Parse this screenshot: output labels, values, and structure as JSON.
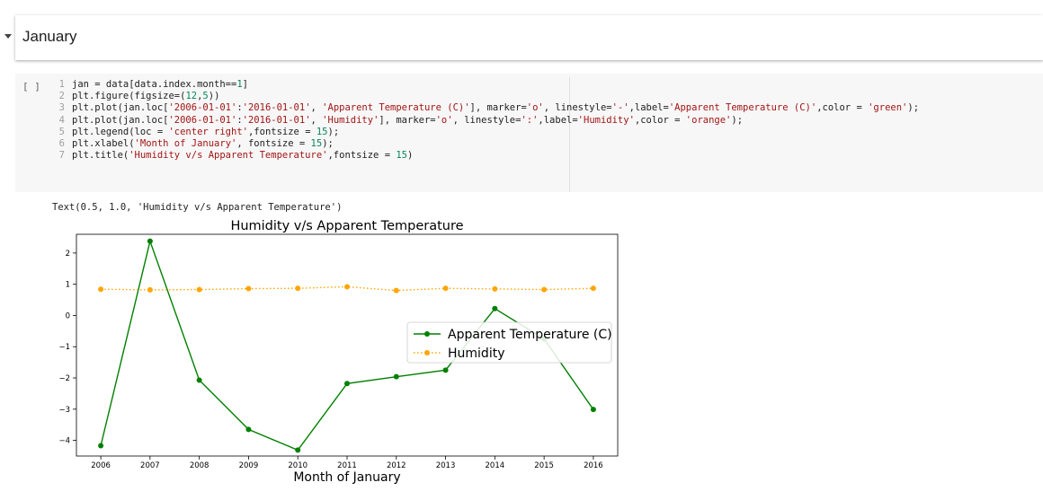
{
  "section": {
    "title": "January"
  },
  "cell": {
    "run_label": "[ ]",
    "lines": [
      [
        {
          "t": "jan = data[data.index.month=="
        },
        {
          "t": "1",
          "c": "num"
        },
        {
          "t": "]"
        }
      ],
      [
        {
          "t": "plt.figure(figsize=("
        },
        {
          "t": "12",
          "c": "num"
        },
        {
          "t": ","
        },
        {
          "t": "5",
          "c": "num"
        },
        {
          "t": "))"
        }
      ],
      [
        {
          "t": "plt.plot(jan.loc["
        },
        {
          "t": "'2006-01-01'",
          "c": "str"
        },
        {
          "t": ":"
        },
        {
          "t": "'2016-01-01'",
          "c": "str"
        },
        {
          "t": ", "
        },
        {
          "t": "'Apparent Temperature (C)'",
          "c": "str"
        },
        {
          "t": "], marker="
        },
        {
          "t": "'o'",
          "c": "str"
        },
        {
          "t": ", linestyle="
        },
        {
          "t": "'-'",
          "c": "str"
        },
        {
          "t": ",label="
        },
        {
          "t": "'Apparent Temperature (C)'",
          "c": "str"
        },
        {
          "t": ",color = "
        },
        {
          "t": "'green'",
          "c": "str"
        },
        {
          "t": ");"
        }
      ],
      [
        {
          "t": "plt.plot(jan.loc["
        },
        {
          "t": "'2006-01-01'",
          "c": "str"
        },
        {
          "t": ":"
        },
        {
          "t": "'2016-01-01'",
          "c": "str"
        },
        {
          "t": ", "
        },
        {
          "t": "'Humidity'",
          "c": "str"
        },
        {
          "t": "], marker="
        },
        {
          "t": "'o'",
          "c": "str"
        },
        {
          "t": ", linestyle="
        },
        {
          "t": "':'",
          "c": "str"
        },
        {
          "t": ",label="
        },
        {
          "t": "'Humidity'",
          "c": "str"
        },
        {
          "t": ",color = "
        },
        {
          "t": "'orange'",
          "c": "str"
        },
        {
          "t": ");"
        }
      ],
      [
        {
          "t": "plt.legend(loc = "
        },
        {
          "t": "'center right'",
          "c": "str"
        },
        {
          "t": ",fontsize = "
        },
        {
          "t": "15",
          "c": "num"
        },
        {
          "t": ");"
        }
      ],
      [
        {
          "t": "plt.xlabel("
        },
        {
          "t": "'Month of January'",
          "c": "str"
        },
        {
          "t": ", fontsize = "
        },
        {
          "t": "15",
          "c": "num"
        },
        {
          "t": ");"
        }
      ],
      [
        {
          "t": "plt.title("
        },
        {
          "t": "'Humidity v/s Apparent Temperature'",
          "c": "str"
        },
        {
          "t": ",fontsize = "
        },
        {
          "t": "15",
          "c": "num"
        },
        {
          "t": ")"
        }
      ]
    ]
  },
  "output": {
    "text": "Text(0.5, 1.0, 'Humidity v/s Apparent Temperature')"
  },
  "chart_data": {
    "type": "line",
    "title": "Humidity v/s Apparent Temperature",
    "xlabel": "Month of January",
    "ylabel": "",
    "x": [
      "2006",
      "2007",
      "2008",
      "2009",
      "2010",
      "2011",
      "2012",
      "2013",
      "2014",
      "2015",
      "2016"
    ],
    "ylim": [
      -4.5,
      2.6
    ],
    "yticks": [
      2,
      1,
      0,
      -1,
      -2,
      -3,
      -4
    ],
    "ytick_labels": [
      "2",
      "1",
      "0",
      "−1",
      "−2",
      "−3",
      "−4"
    ],
    "grid": false,
    "legend": "center right",
    "series": [
      {
        "name": "Apparent Temperature (C)",
        "color": "#008000",
        "linestyle": "solid",
        "values": [
          -4.17,
          2.38,
          -2.07,
          -3.65,
          -4.31,
          -2.18,
          -1.96,
          -1.75,
          0.22,
          -0.75,
          -3.01
        ]
      },
      {
        "name": "Humidity",
        "color": "#ffa500",
        "linestyle": "dotted",
        "values": [
          0.84,
          0.82,
          0.83,
          0.86,
          0.87,
          0.92,
          0.8,
          0.87,
          0.85,
          0.83,
          0.87
        ]
      }
    ]
  }
}
